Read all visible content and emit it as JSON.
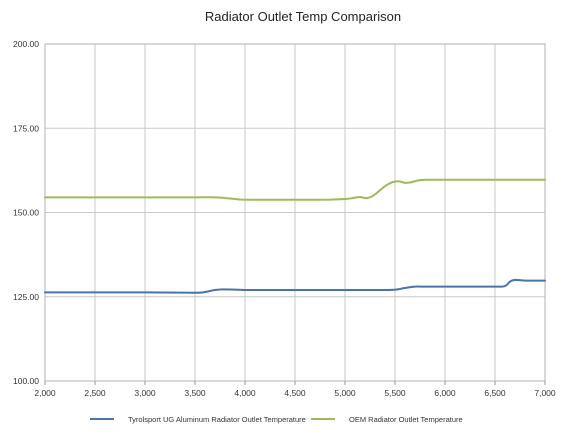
{
  "chart_data": {
    "type": "line",
    "title": "Radiator Outlet Temp Comparison",
    "xlabel": "",
    "ylabel": "",
    "xlim": [
      2000,
      7000
    ],
    "ylim": [
      100,
      200
    ],
    "x_ticks": [
      2000,
      2500,
      3000,
      3500,
      4000,
      4500,
      5000,
      5500,
      6000,
      6500,
      7000
    ],
    "x_tick_labels": [
      "2,000",
      "2,500",
      "3,000",
      "3,500",
      "4,000",
      "4,500",
      "5,000",
      "5,500",
      "6,000",
      "6,500",
      "7,000"
    ],
    "y_ticks": [
      100,
      125,
      150,
      175,
      200
    ],
    "y_tick_labels": [
      "100.00",
      "125.00",
      "150.00",
      "175.00",
      "200.00"
    ],
    "grid": true,
    "legend_position": "bottom",
    "series": [
      {
        "name": "Tyrolsport UG Aluminum Radiator Outlet Temperature",
        "color": "#4a74a8",
        "x": [
          2000,
          2500,
          3000,
          3500,
          3600,
          3700,
          3800,
          4000,
          4500,
          5000,
          5200,
          5400,
          5500,
          5600,
          5700,
          5800,
          6000,
          6500,
          6600,
          6650,
          6700,
          6800,
          7000
        ],
        "y": [
          126.3,
          126.3,
          126.3,
          126.2,
          126.4,
          127.0,
          127.2,
          127.0,
          127.0,
          127.0,
          127.0,
          127.0,
          127.1,
          127.6,
          128.0,
          128.0,
          128.0,
          128.0,
          128.2,
          129.5,
          130.0,
          129.8,
          129.8
        ]
      },
      {
        "name": "OEM Radiator Outlet Temperature",
        "color": "#9bbb59",
        "x": [
          2000,
          2500,
          3000,
          3500,
          3700,
          3800,
          3900,
          4000,
          4500,
          4800,
          5000,
          5100,
          5150,
          5200,
          5250,
          5300,
          5350,
          5400,
          5450,
          5500,
          5550,
          5600,
          5650,
          5700,
          5750,
          5800,
          5850,
          5900,
          6000,
          6500,
          7000
        ],
        "y": [
          154.5,
          154.5,
          154.5,
          154.5,
          154.5,
          154.3,
          154.0,
          153.8,
          153.8,
          153.8,
          154.0,
          154.4,
          154.6,
          154.3,
          154.5,
          155.4,
          156.6,
          157.8,
          158.7,
          159.2,
          159.2,
          158.8,
          158.9,
          159.3,
          159.6,
          159.7,
          159.7,
          159.7,
          159.7,
          159.7,
          159.7
        ]
      }
    ]
  }
}
